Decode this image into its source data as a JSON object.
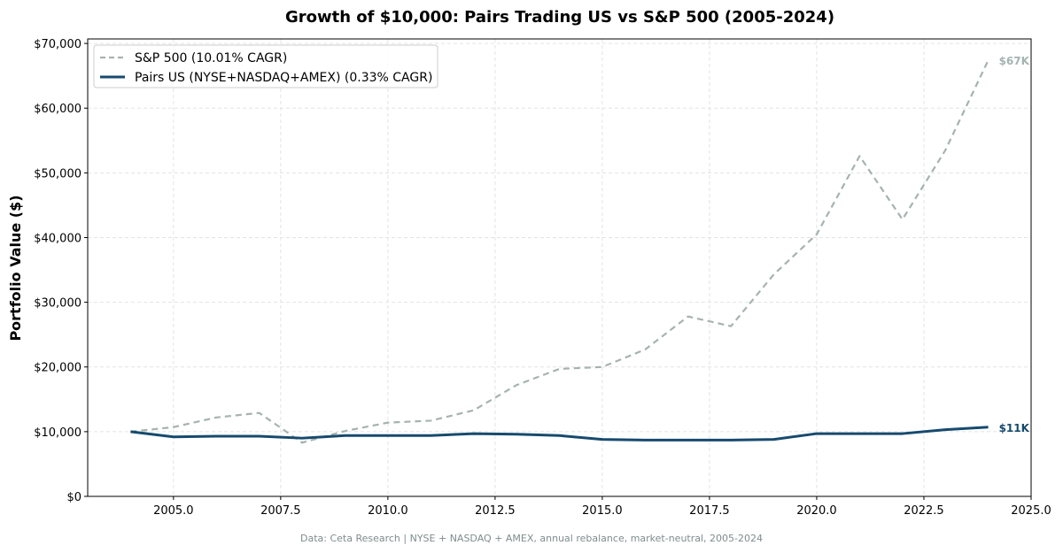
{
  "chart_data": {
    "type": "line",
    "title": "Growth of $10,000: Pairs Trading US vs S&P 500 (2005-2024)",
    "xlabel": "",
    "ylabel": "Portfolio Value ($)",
    "xlim": [
      2003.0,
      2025.0
    ],
    "ylim": [
      0,
      70700
    ],
    "grid": true,
    "legend_position": "top-left",
    "x_ticks": [
      2005.0,
      2007.5,
      2010.0,
      2012.5,
      2015.0,
      2017.5,
      2020.0,
      2022.5,
      2025.0
    ],
    "x_tick_labels": [
      "2005.0",
      "2007.5",
      "2010.0",
      "2012.5",
      "2015.0",
      "2017.5",
      "2020.0",
      "2022.5",
      "2025.0"
    ],
    "y_ticks": [
      0,
      10000,
      20000,
      30000,
      40000,
      50000,
      60000,
      70000
    ],
    "y_tick_labels": [
      "$0",
      "$10,000",
      "$20,000",
      "$30,000",
      "$40,000",
      "$50,000",
      "$60,000",
      "$70,000"
    ],
    "x": [
      2004,
      2005,
      2006,
      2007,
      2008,
      2009,
      2010,
      2011,
      2012,
      2013,
      2014,
      2015,
      2016,
      2017,
      2018,
      2019,
      2020,
      2021,
      2022,
      2023,
      2024
    ],
    "series": [
      {
        "name": "S&P 500 (10.01% CAGR)",
        "color": "#a5b3b1",
        "style": "dashed",
        "end_label": "$67K",
        "values": [
          10000,
          10700,
          12200,
          12900,
          8300,
          10100,
          11400,
          11700,
          13300,
          17200,
          19700,
          20000,
          22700,
          27800,
          26300,
          34300,
          40500,
          52600,
          42800,
          53500,
          67400
        ]
      },
      {
        "name": "Pairs US (NYSE+NASDAQ+AMEX) (0.33% CAGR)",
        "color": "#164a6e",
        "style": "solid",
        "end_label": "$11K",
        "values": [
          10000,
          9200,
          9300,
          9300,
          9000,
          9400,
          9400,
          9400,
          9700,
          9600,
          9400,
          8800,
          8700,
          8700,
          8700,
          8800,
          9700,
          9700,
          9700,
          10300,
          10700
        ]
      }
    ],
    "footnote": "Data: Ceta Research | NYSE + NASDAQ + AMEX, annual rebalance, market-neutral, 2005-2024"
  }
}
